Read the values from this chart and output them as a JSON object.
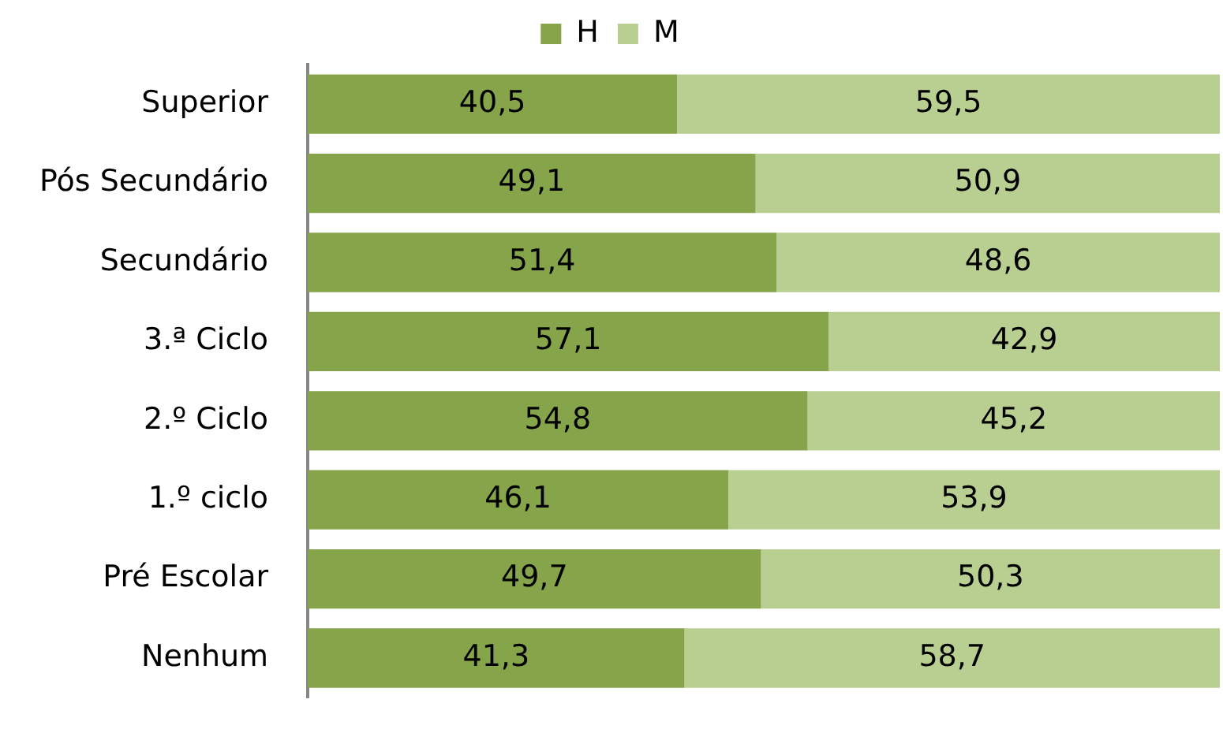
{
  "chart_data": {
    "type": "bar",
    "orientation": "horizontal",
    "stacked": true,
    "categories": [
      "Superior",
      "Pós Secundário",
      "Secundário",
      "3.ª Ciclo",
      "2.º Ciclo",
      "1.º ciclo",
      "Pré Escolar",
      "Nenhum"
    ],
    "series": [
      {
        "name": "H",
        "color": "#86a44a",
        "values": [
          40.5,
          49.1,
          51.4,
          57.1,
          54.8,
          46.1,
          49.7,
          41.3
        ],
        "value_labels": [
          "40,5",
          "49,1",
          "51,4",
          "57,1",
          "54,8",
          "46,1",
          "49,7",
          "41,3"
        ]
      },
      {
        "name": "M",
        "color": "#b9cf92",
        "values": [
          59.5,
          50.9,
          48.6,
          42.9,
          45.2,
          53.9,
          50.3,
          58.7
        ],
        "value_labels": [
          "59,5",
          "50,9",
          "48,6",
          "42,9",
          "45,2",
          "53,9",
          "50,3",
          "58,7"
        ]
      }
    ],
    "xlim": [
      0,
      100
    ],
    "tick_labels": "y",
    "grid": false,
    "legend": "top"
  }
}
